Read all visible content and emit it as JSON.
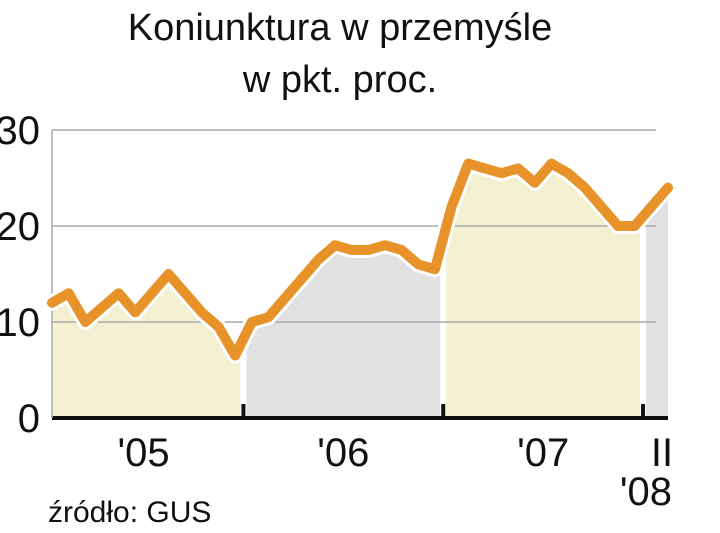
{
  "chart_data": {
    "type": "line",
    "title": "Koniunktura w przemyśle",
    "subtitle": "w pkt. proc.",
    "source": "źródło: GUS",
    "color": "#e8922a",
    "ylim": [
      0,
      30
    ],
    "yticks": [
      0,
      10,
      20,
      30
    ],
    "grid": true,
    "groups": [
      {
        "label": "'05",
        "fill": "#f3f0d2",
        "values": [
          12,
          13,
          10,
          11.5,
          13,
          11,
          13,
          15,
          13,
          11,
          9.5,
          6.5
        ]
      },
      {
        "label": "'06",
        "fill": "#e1e1e1",
        "values": [
          10,
          10.5,
          12.5,
          14.5,
          16.5,
          18,
          17.5,
          17.5,
          18,
          17.5,
          16,
          15.5
        ]
      },
      {
        "label": "'07",
        "fill": "#f3f0d2",
        "values": [
          22,
          26.5,
          26,
          25.5,
          26,
          24.5,
          26.5,
          25.5,
          24,
          22,
          20,
          20
        ]
      },
      {
        "label": "'08",
        "fill": "#e1e1e1",
        "categories": [
          null,
          "II"
        ],
        "values": [
          22,
          24
        ]
      }
    ]
  }
}
